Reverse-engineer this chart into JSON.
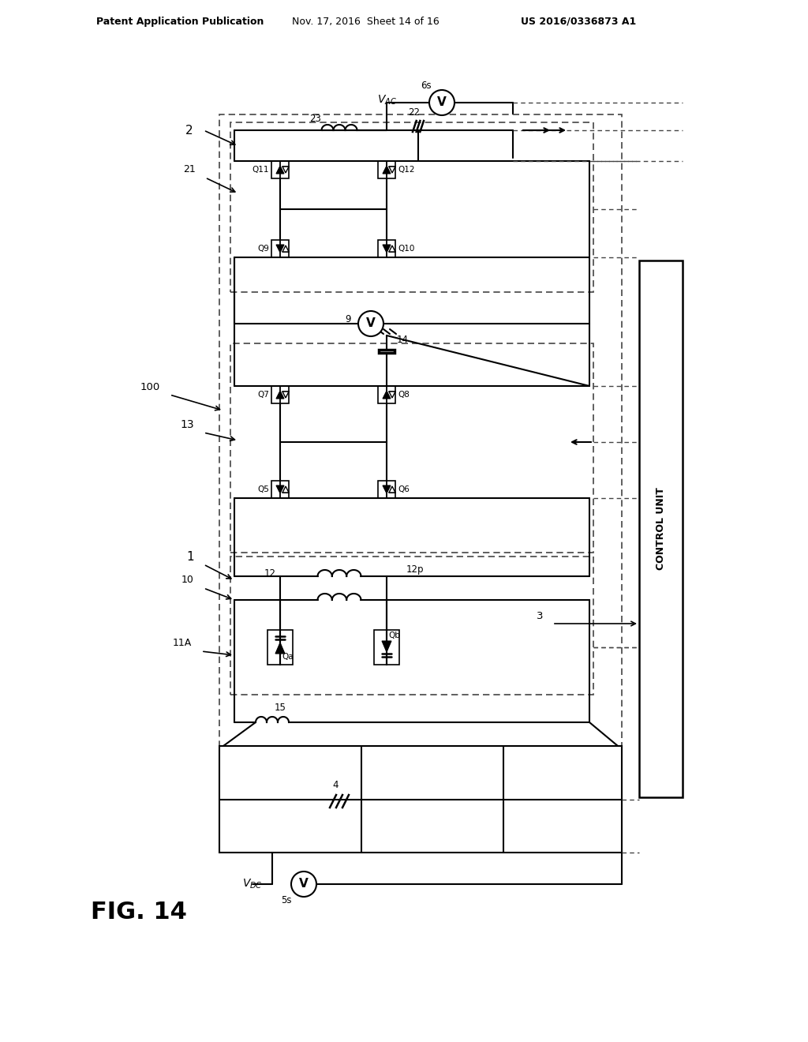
{
  "header_left": "Patent Application Publication",
  "header_mid": "Nov. 17, 2016  Sheet 14 of 16",
  "header_right": "US 2016/0336873 A1",
  "bg_color": "#ffffff",
  "lc": "#000000",
  "dc": "#444444",
  "fig_label": "FIG. 14"
}
